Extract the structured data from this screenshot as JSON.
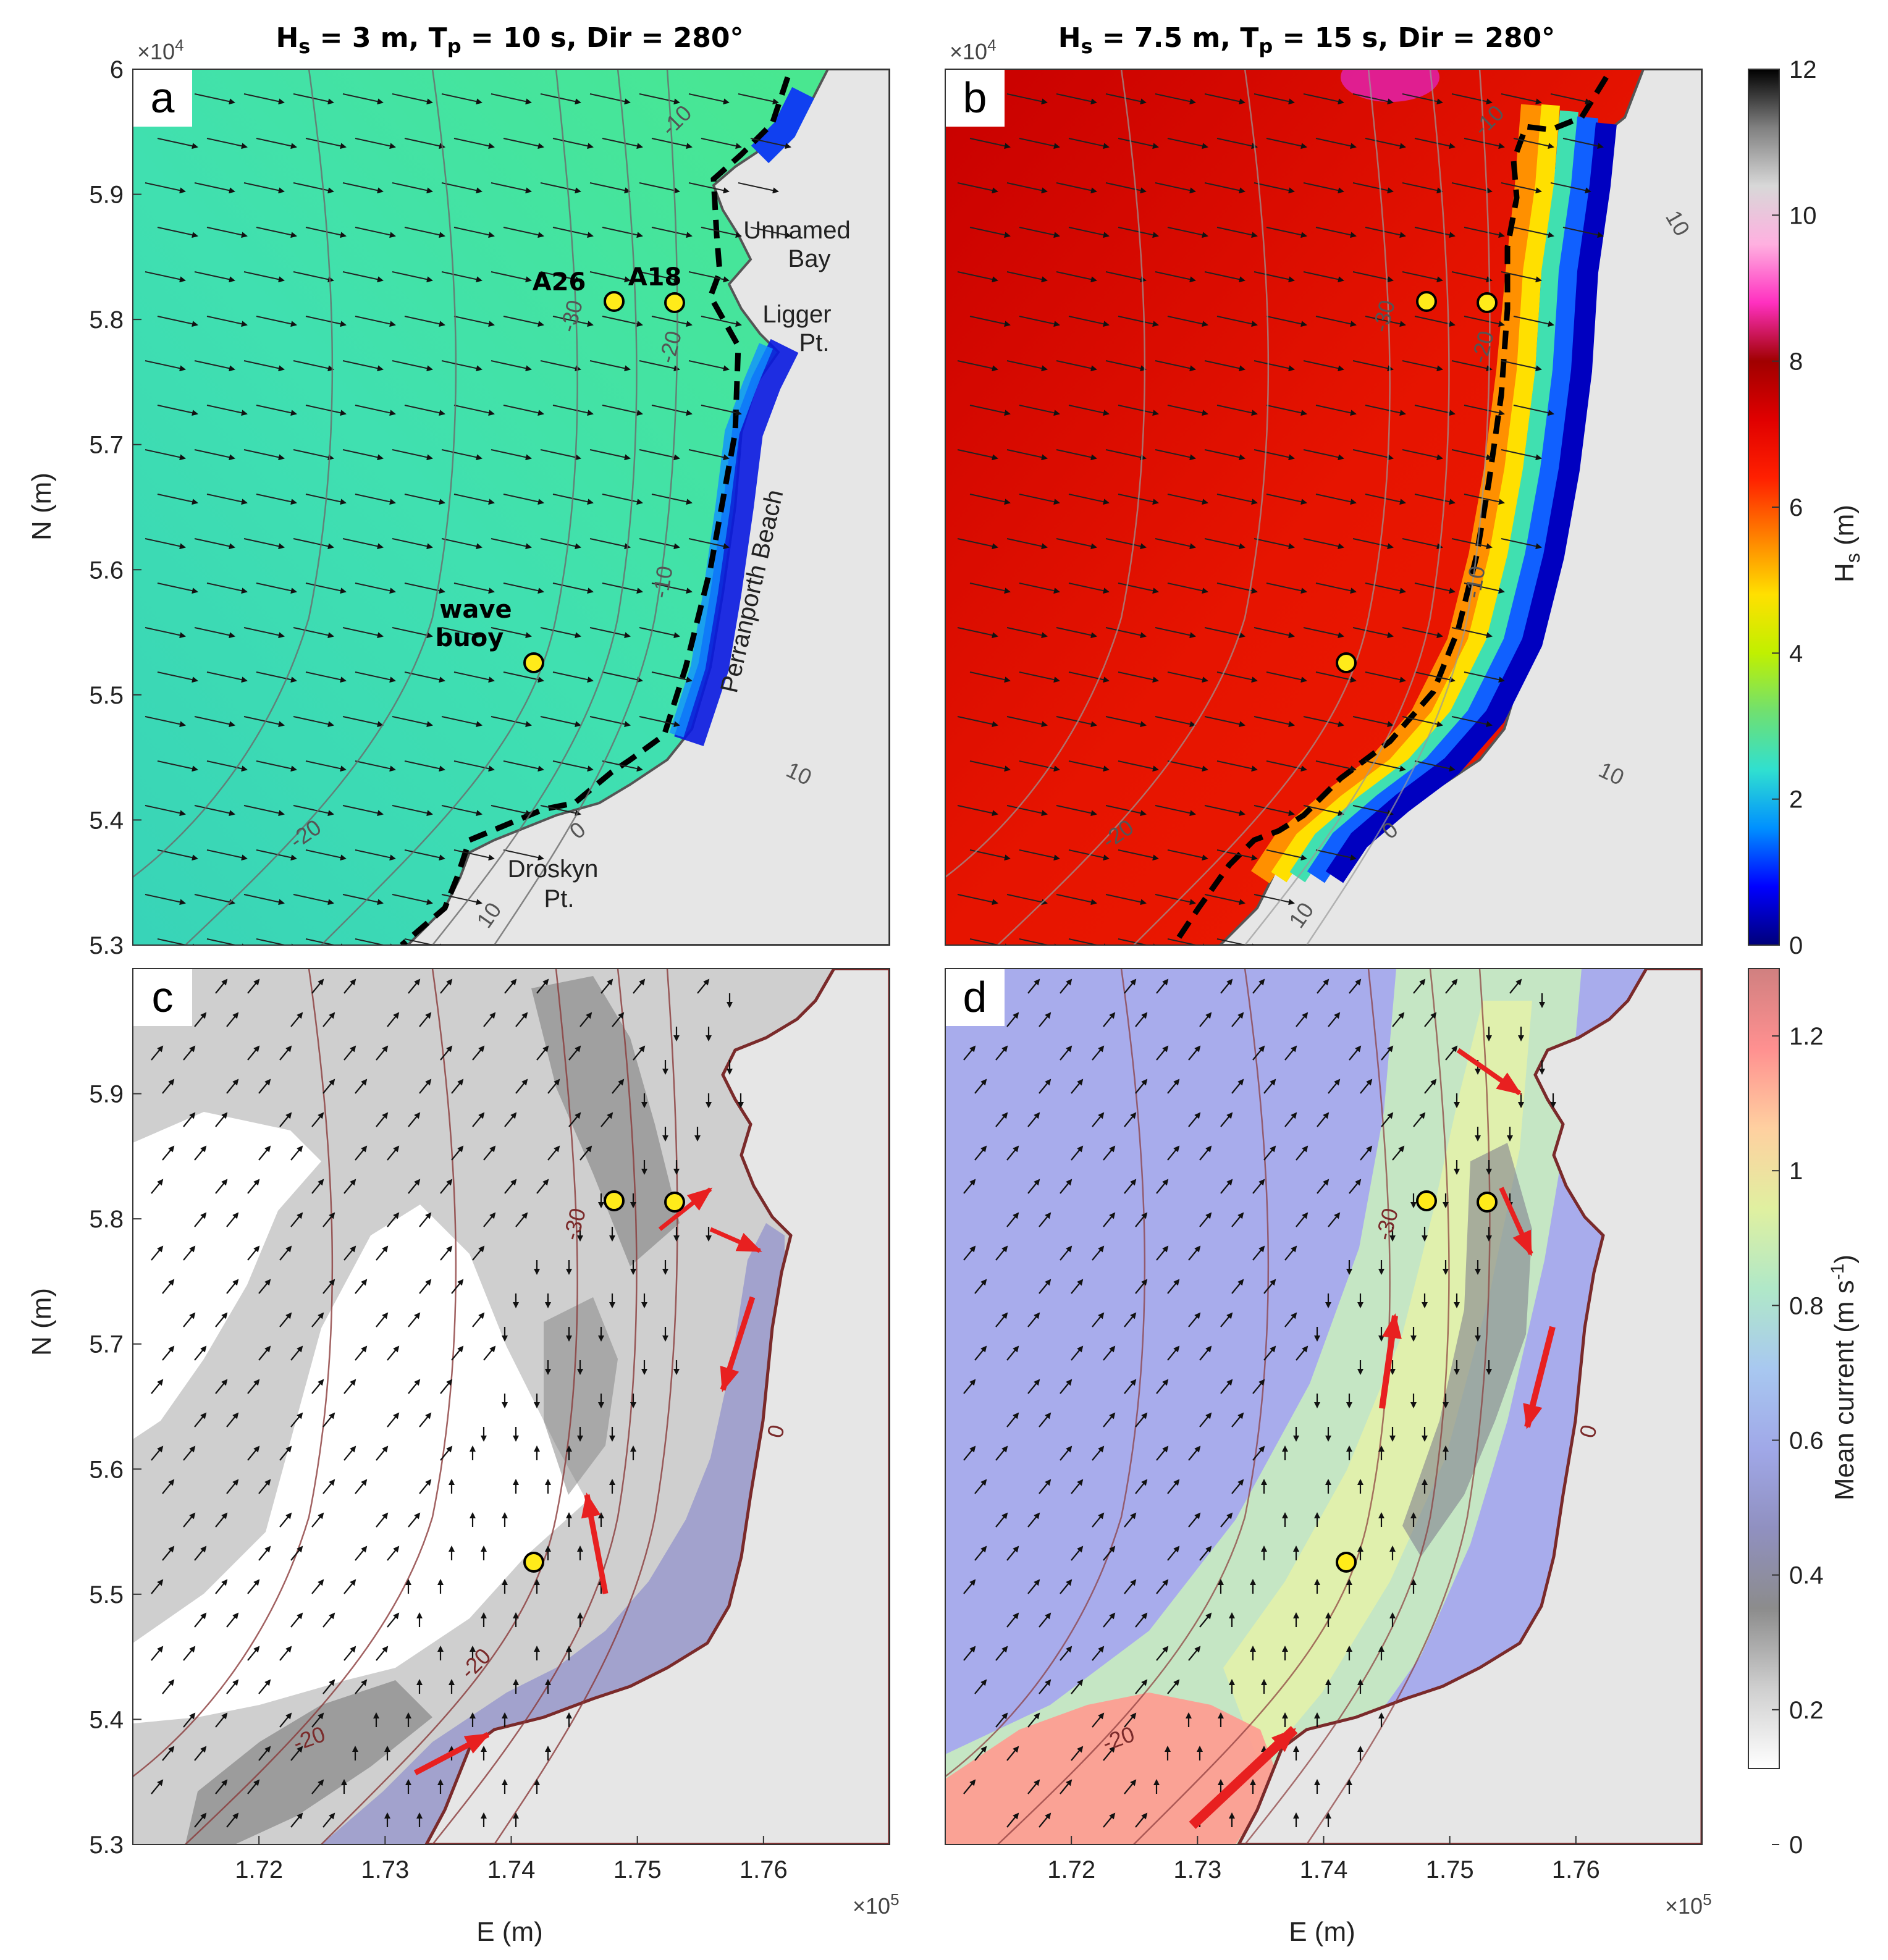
{
  "chart_data": [
    {
      "panel": "a",
      "type": "heatmap",
      "title": "Hs = 3 m, Tp = 10 s, Dir = 280°",
      "title_parts": {
        "h": "H",
        "hsub": "s",
        "rest1": " = 3 m, T",
        "psub": "p",
        "rest2": " = 10 s, Dir = 280°"
      },
      "ylabel": "N (m)",
      "y_exponent": "×10",
      "exp_power": "4",
      "yticks": [
        "5.3",
        "5.4",
        "5.5",
        "5.6",
        "5.7",
        "5.8",
        "5.9",
        "6"
      ],
      "xlim": [
        171000,
        177000
      ],
      "ylim": [
        53000,
        60000
      ],
      "colorbar": "Hs",
      "sites": [
        {
          "name": "A26",
          "E": 174850,
          "N": 58150
        },
        {
          "name": "A18",
          "E": 175350,
          "N": 58130
        },
        {
          "name": "wave buoy",
          "E": 174200,
          "N": 55270
        }
      ],
      "place_labels": [
        "Unnamed",
        "Bay",
        "Ligger",
        "Pt.",
        "Perranporth Beach",
        "Droskyn",
        "Pt."
      ],
      "contour_labels": [
        "-30",
        "-20",
        "-10",
        "-20",
        "0",
        "-10",
        "10",
        "10",
        "10"
      ]
    },
    {
      "panel": "b",
      "type": "heatmap",
      "title": "Hs = 7.5 m, Tp = 15 s, Dir = 280°",
      "title_parts": {
        "h": "H",
        "hsub": "s",
        "rest1": " = 7.5 m, T",
        "psub": "p",
        "rest2": " = 15 s, Dir = 280°"
      },
      "y_exponent": "×10",
      "exp_power": "4",
      "xlim": [
        171000,
        177000
      ],
      "ylim": [
        53000,
        60000
      ],
      "colorbar": "Hs",
      "contour_labels": [
        "-30",
        "-20",
        "-10",
        "-20",
        "0",
        "-10",
        "10",
        "10",
        "10"
      ]
    },
    {
      "panel": "c",
      "type": "heatmap",
      "ylabel": "N (m)",
      "xlabel": "E (m)",
      "x_exponent": "×10",
      "exp_power": "5",
      "xticks": [
        "1.72",
        "1.73",
        "1.74",
        "1.75",
        "1.76"
      ],
      "yticks": [
        "5.3",
        "5.4",
        "5.5",
        "5.6",
        "5.7",
        "5.8",
        "5.9"
      ],
      "xlim": [
        171000,
        177000
      ],
      "ylim": [
        53000,
        60000
      ],
      "colorbar": "Mean current",
      "contour_labels": [
        "-30",
        "-20",
        "-20",
        "0"
      ]
    },
    {
      "panel": "d",
      "type": "heatmap",
      "xlabel": "E (m)",
      "x_exponent": "×10",
      "exp_power": "5",
      "xticks": [
        "1.72",
        "1.73",
        "1.74",
        "1.75",
        "1.76"
      ],
      "xlim": [
        171000,
        177000
      ],
      "ylim": [
        53000,
        60000
      ],
      "colorbar": "Mean current",
      "contour_labels": [
        "-30",
        "-20",
        "0"
      ]
    }
  ],
  "colorbars": {
    "hs": {
      "label_main": "H",
      "label_sub": "s",
      "label_unit": " (m)",
      "range": [
        0,
        12
      ],
      "ticks": [
        "0",
        "2",
        "4",
        "6",
        "8",
        "10",
        "12"
      ],
      "stops": [
        "#00007a",
        "#0000ff",
        "#0090ff",
        "#30e0d0",
        "#70e070",
        "#c0f000",
        "#ffe000",
        "#ff8000",
        "#ff2000",
        "#e00000",
        "#a00000",
        "#ff30c0",
        "#ffb0e0",
        "#d8d8d8",
        "#808080",
        "#000000"
      ]
    },
    "current": {
      "label": "Mean current (m s",
      "label_exp": "-1",
      "label_close": ")",
      "range": [
        0,
        1.3
      ],
      "ticks": [
        "0",
        "0.2",
        "0.4",
        "0.6",
        "0.8",
        "1",
        "1.2"
      ],
      "stops": [
        "#ffffff",
        "#cfcfcf",
        "#8c8c8c",
        "#9090c0",
        "#a0a8e8",
        "#a8c8f0",
        "#b0e8c8",
        "#e0f0a0",
        "#ffd0a0",
        "#ff9090",
        "#d08080"
      ]
    }
  },
  "colors": {
    "hs_low": "#3cdcb4",
    "hs_high": "#e81800",
    "land": "#e6e6e6",
    "buoy_fill": "#ffeb1a",
    "red_arrow": "#e82020",
    "bathy_c": "#7a2a2a"
  }
}
